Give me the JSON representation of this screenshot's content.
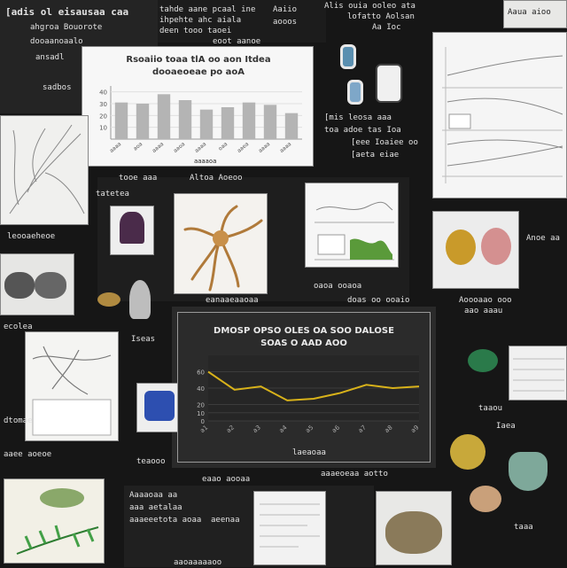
{
  "colors": {
    "background": "#161616",
    "panel": "#242424",
    "card": "#f4f4f2",
    "bar": "#b4b4b4",
    "line_series": "#d8b21a",
    "dark_chart_bg": "#2b2b2b"
  },
  "labels": {
    "top_left_a": "[adis ol eisausaa caa",
    "top_left_b": "ahgroa Bouorote",
    "top_left_c": "dooaanoaalo",
    "top_left_d": "ansadl",
    "top_center_a": "tahde aane pcaal ine",
    "top_center_b": "ihpehte ahc aiala",
    "top_center_c": "deen tooo taoei",
    "top_center_d": "eoot aanoe",
    "top_mid_a": "Aaiio",
    "top_mid_b": "aooos",
    "top_right_a": "Alis ouia ooleo ata",
    "top_right_b": "lofatto Aolsan",
    "top_right_c": "Aa Ioc",
    "right_tag": "Aaua aioo",
    "bar_chart_caption": "aaaaoa",
    "left_tag": "sadbos",
    "specimen_row": "[mis leosa aaa",
    "specimen_row_b": "toa adoe tas Ioa",
    "specimen_row_c": "[eee Ioaiee oo",
    "specimen_row_d": "[aeta eiae",
    "mid_tab_a": "leooaeheoe",
    "mid_tab_b": "Altoa Aoeoo",
    "mid_tab_c": "ecolea",
    "left_mid_a": "tatetea",
    "left_mid_b": "tooe aaa",
    "green_caption": "oaoa ooaoa",
    "center_strip_a": "eanaaeaaoaa",
    "center_strip_b": "doas oo ooaio",
    "right_strip_a": "Aoooaao ooo",
    "right_strip_b": "aao aaau",
    "right_strip_c": "Anoe aa",
    "right_strip_d": "taaou",
    "lower_left_a": "Iseas",
    "lower_left_b": "dtomae",
    "lower_left_c": "Aaaaoaa aa",
    "lower_left_d": "aaa aetalaa",
    "lower_center_a": "aaaeoeaa aotto",
    "lower_center_b": "eaao aooaa",
    "lower_center_c": "aaaeeetota aoaa",
    "lower_center_d": "aeenaa",
    "lower_center_e": "aaoaaaaaoo",
    "bottom_a": "aaee aoeoe",
    "bottom_b": "teaooo",
    "right_lower_a": "Iaea",
    "right_lower_b": "taaa",
    "dark_chart_caption": "laeaoaa"
  },
  "bar_chart": {
    "title_line1": "Rsoaiio toaa tlA oo aon Itdea",
    "title_line2": "dooaeoeae po aoA",
    "categories": [
      "aaaa",
      "aoa",
      "aaaa",
      "aaoa",
      "aaaa",
      "oaa",
      "aaea",
      "aaaa",
      "aaaa"
    ],
    "values": [
      31,
      30,
      38,
      33,
      25,
      27,
      31,
      29,
      22
    ],
    "ylim": [
      0,
      45
    ],
    "y_ticks": [
      "40",
      "30",
      "20",
      "10"
    ]
  },
  "line_chart": {
    "title_line1": "DMOSP OPSO OLES OA SOO DALOSE",
    "title_line2": "SOAS O AAD AOO",
    "categories": [
      "a1",
      "a2",
      "a3",
      "a4",
      "a5",
      "a6",
      "a7",
      "a8",
      "a9"
    ],
    "values": [
      60,
      38,
      42,
      25,
      27,
      34,
      44,
      40,
      42
    ],
    "ylim": [
      0,
      80
    ],
    "y_ticks": [
      "60",
      "40",
      "20",
      "10",
      "0"
    ]
  }
}
